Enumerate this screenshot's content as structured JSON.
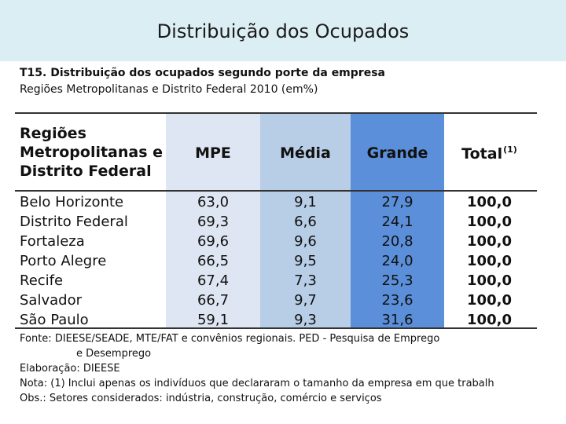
{
  "slide": {
    "title": "Distribuição dos Ocupados"
  },
  "table": {
    "title": "T15. Distribuição dos ocupados segundo porte da empresa",
    "subtitle": "Regiões Metropolitanas e Distrito Federal 2010 (em%)",
    "header": {
      "region_lines": [
        "Regiões",
        "Metropolitanas e",
        "Distrito Federal"
      ],
      "mpe": "MPE",
      "media": "Média",
      "grande": "Grande",
      "total": "Total",
      "total_note": "(1)"
    },
    "rows": [
      {
        "region": "Belo Horizonte",
        "mpe": "63,0",
        "media": "9,1",
        "grande": "27,9",
        "total": "100,0"
      },
      {
        "region": "Distrito Federal",
        "mpe": "69,3",
        "media": "6,6",
        "grande": "24,1",
        "total": "100,0"
      },
      {
        "region": "Fortaleza",
        "mpe": "69,6",
        "media": "9,6",
        "grande": "20,8",
        "total": "100,0"
      },
      {
        "region": "Porto Alegre",
        "mpe": "66,5",
        "media": "9,5",
        "grande": "24,0",
        "total": "100,0"
      },
      {
        "region": "Recife",
        "mpe": "67,4",
        "media": "7,3",
        "grande": "25,3",
        "total": "100,0"
      },
      {
        "region": "Salvador",
        "mpe": "66,7",
        "media": "9,7",
        "grande": "23,6",
        "total": "100,0"
      },
      {
        "region": "São Paulo",
        "mpe": "59,1",
        "media": "9,3",
        "grande": "31,6",
        "total": "100,0"
      }
    ]
  },
  "notes": {
    "source_line1": "Fonte: DIEESE/SEADE, MTE/FAT e convênios regionais. PED - Pesquisa de Emprego",
    "source_line2": "e Desemprego",
    "elaboration": "Elaboração: DIEESE",
    "note": "Nota: (1) Inclui apenas os indivíduos que declararam o tamanho da empresa em que trabalh",
    "obs": "Obs.: Setores considerados: indústria, construção, comércio e serviços"
  },
  "colors": {
    "banner": "#dbeef4",
    "mpe_column": "#dfe6f3",
    "media_column": "#b8cde6",
    "grande_column": "#5b8fd9"
  }
}
